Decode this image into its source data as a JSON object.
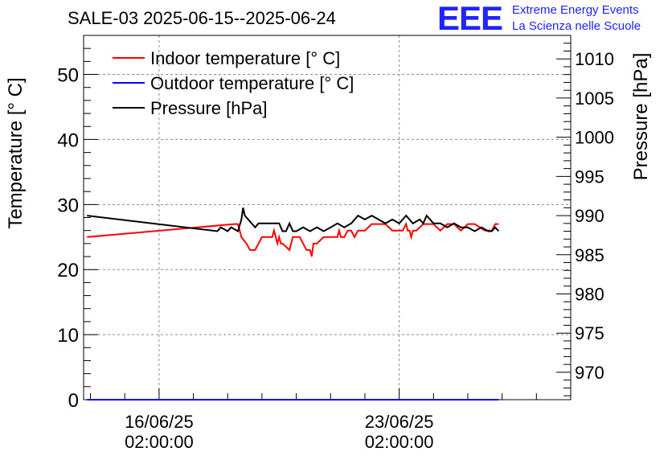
{
  "chart_data": {
    "type": "line",
    "title": "SALE-03 2025-06-15--2025-06-24",
    "ylabel": "Temperature [° C]",
    "y2label": "Pressure [hPa]",
    "ylim": [
      0,
      56
    ],
    "y2lim": [
      966.5,
      1013
    ],
    "yticks": [
      0,
      10,
      20,
      30,
      40,
      50
    ],
    "y2ticks": [
      970,
      975,
      980,
      985,
      990,
      995,
      1000,
      1005,
      1010
    ],
    "xlim_days": [
      -2.2,
      12.0
    ],
    "xticks": [
      {
        "day": 0,
        "date": "16/06/25",
        "time": "02:00:00"
      },
      {
        "day": 7,
        "date": "23/06/25",
        "time": "02:00:00"
      }
    ],
    "grid": true,
    "legend_position": "top-left",
    "series": [
      {
        "name": "Indoor temperature [° C]",
        "color": "#ff0000",
        "axis": "left",
        "x": [
          -2.1,
          2.2,
          2.3,
          2.4,
          2.55,
          2.65,
          2.8,
          3.0,
          3.2,
          3.3,
          3.35,
          3.4,
          3.45,
          3.5,
          3.55,
          3.6,
          3.8,
          3.85,
          3.9,
          3.95,
          4.0,
          4.05,
          4.1,
          4.2,
          4.3,
          4.4,
          4.45,
          4.5,
          4.6,
          4.8,
          5.2,
          5.25,
          5.3,
          5.35,
          5.4,
          5.5,
          5.6,
          5.7,
          5.8,
          5.9,
          6.0,
          6.2,
          6.6,
          6.8,
          7.1,
          7.2,
          7.25,
          7.3,
          7.35,
          7.4,
          7.5,
          7.7,
          8.0,
          8.2,
          8.4,
          8.6,
          8.8,
          9.0,
          9.2,
          9.5,
          9.6,
          9.7,
          9.8,
          9.9
        ],
        "values": [
          25,
          27,
          27,
          25,
          24,
          23,
          23,
          25,
          25,
          25,
          26,
          25,
          24,
          25,
          24,
          24,
          23,
          24,
          25,
          25,
          25,
          25,
          25,
          24,
          23,
          23,
          22,
          24,
          24,
          25,
          25,
          26,
          25,
          25,
          25,
          26,
          26,
          25,
          26,
          26,
          26,
          27,
          27,
          26,
          26,
          27,
          26,
          26,
          25,
          26,
          26,
          27,
          27,
          26,
          27,
          27,
          26,
          27,
          27,
          26,
          26,
          26,
          27,
          27
        ]
      },
      {
        "name": "Outdoor temperature [° C]",
        "color": "#0000ff",
        "axis": "left",
        "x": [
          -2.1,
          9.9
        ],
        "values": [
          0,
          0
        ]
      },
      {
        "name": "Pressure [hPa]",
        "color": "#000000",
        "axis": "right",
        "x": [
          -2.1,
          1.7,
          1.8,
          2.0,
          2.1,
          2.3,
          2.4,
          2.45,
          2.5,
          2.6,
          2.7,
          2.8,
          2.9,
          3.1,
          3.5,
          3.6,
          3.7,
          3.8,
          3.9,
          4.0,
          4.2,
          4.4,
          4.6,
          4.8,
          5.0,
          5.2,
          5.4,
          5.6,
          5.8,
          6.0,
          6.2,
          6.4,
          6.6,
          6.8,
          7.0,
          7.2,
          7.4,
          7.6,
          7.7,
          7.8,
          7.9,
          8.0,
          8.2,
          8.4,
          8.6,
          8.8,
          9.0,
          9.2,
          9.4,
          9.6,
          9.7,
          9.8,
          9.9
        ],
        "values": [
          990,
          988,
          988.5,
          988,
          988.5,
          988,
          989.5,
          991,
          990,
          989.5,
          989,
          988.5,
          989,
          989,
          989,
          988,
          988,
          989,
          988,
          988,
          988.5,
          988,
          988.5,
          988,
          988.5,
          989,
          988.5,
          989,
          990,
          989.5,
          990,
          989.5,
          989,
          989.5,
          989,
          990,
          989,
          989.5,
          989,
          990,
          989.5,
          989,
          989,
          988.5,
          989,
          988.5,
          988.5,
          988,
          988.5,
          988,
          988,
          988.5,
          988
        ]
      }
    ]
  },
  "logo": {
    "mark": "EEE",
    "line1": "Extreme Energy Events",
    "line2": "La Scienza nelle Scuole"
  }
}
